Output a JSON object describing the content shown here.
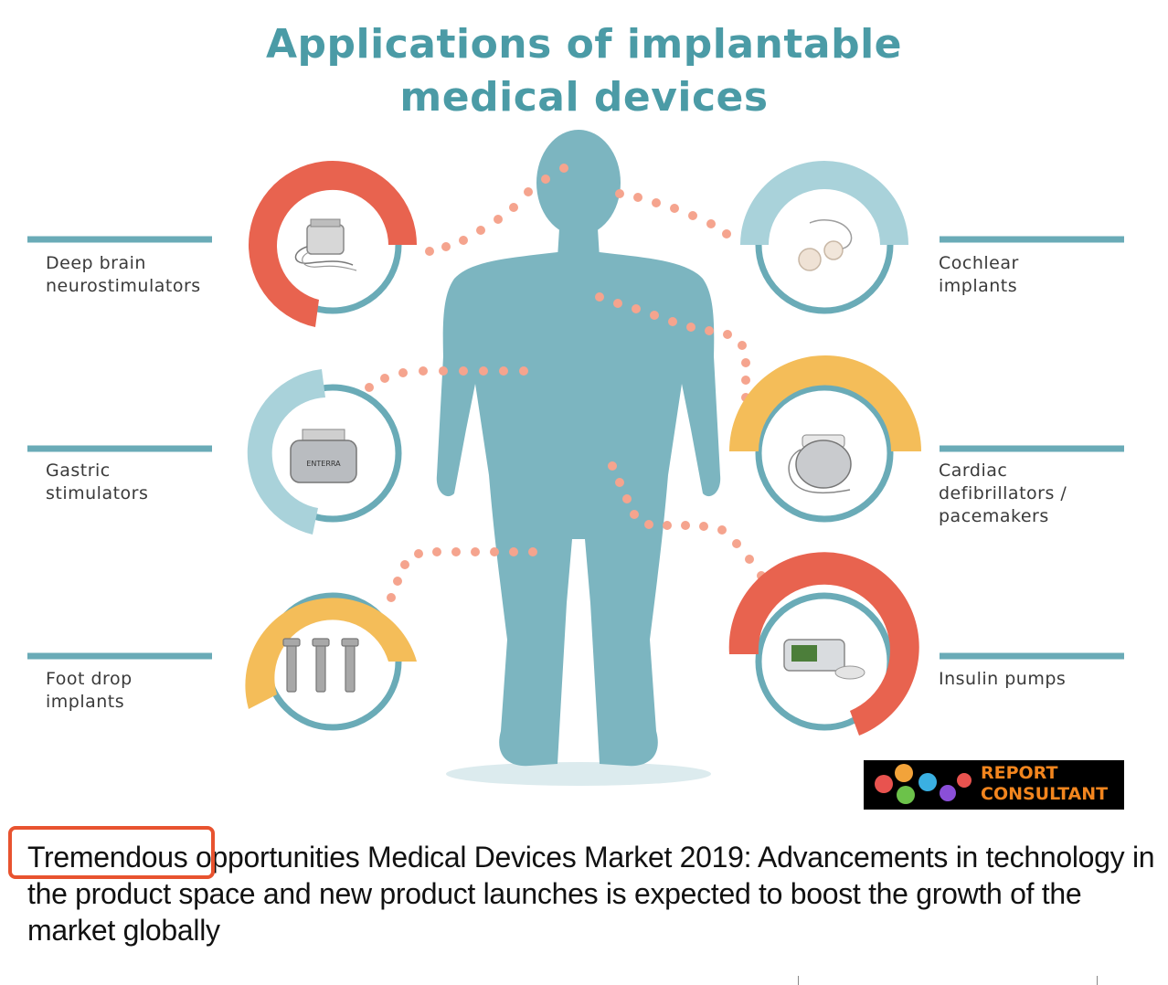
{
  "infographic": {
    "title": "Applications of implantable\nmedical devices",
    "devices": [
      {
        "label": "Deep brain\nneurostimulators",
        "color": "#e8634f",
        "icon": "neurostimulator-device-icon"
      },
      {
        "label": "Gastric\nstimulators",
        "color": "#a9d2da",
        "icon": "gastric-stimulator-device-icon",
        "device_text": "ENTERRA"
      },
      {
        "label": "Foot drop\nimplants",
        "color": "#f4bd59",
        "icon": "foot-drop-implant-icon"
      },
      {
        "label": "Cochlear\nimplants",
        "color": "#a9d2da",
        "icon": "cochlear-implant-icon"
      },
      {
        "label": "Cardiac\ndefibrillators /\npacemakers",
        "color": "#f4bd59",
        "icon": "pacemaker-device-icon"
      },
      {
        "label": "Insulin pumps",
        "color": "#e8634f",
        "icon": "insulin-pump-icon"
      }
    ],
    "body_color": "#7cb5c0",
    "accent_line_color": "#6aabb7",
    "dots_color": "#f5a48e"
  },
  "logo": {
    "text": "REPORT\nCONSULTANT"
  },
  "headline": {
    "highlighted_word": "Tremendous",
    "rest": " opportunities Medical Devices Market 2019: Advancements in technology in the product space and new product launches is expected to boost the growth of the market globally"
  }
}
